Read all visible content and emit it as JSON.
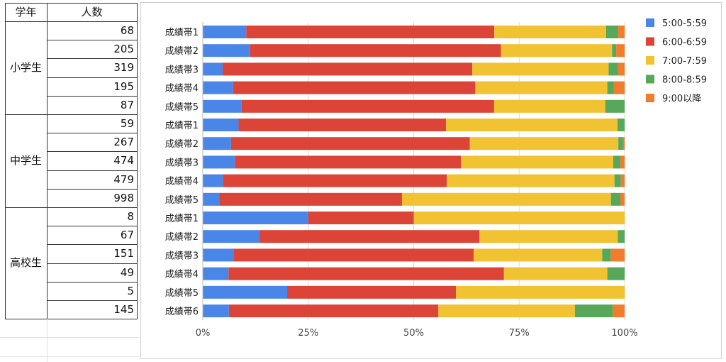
{
  "sheet": {
    "headers": [
      "学年",
      "人数"
    ],
    "groups": [
      {
        "grade": "小学生",
        "counts": [
          "68",
          "205",
          "319",
          "195",
          "87"
        ]
      },
      {
        "grade": "中学生",
        "counts": [
          "59",
          "267",
          "474",
          "479",
          "998"
        ]
      },
      {
        "grade": "高校生",
        "counts": [
          "8",
          "67",
          "151",
          "49",
          "5",
          "145"
        ]
      }
    ]
  },
  "chart_data": {
    "type": "bar",
    "orientation": "horizontal",
    "stacked": "percent",
    "categories": [
      "成績帯1",
      "成績帯2",
      "成績帯3",
      "成績帯4",
      "成績帯5",
      "成績帯1",
      "成績帯2",
      "成績帯3",
      "成績帯4",
      "成績帯5",
      "成績帯1",
      "成績帯2",
      "成績帯3",
      "成績帯4",
      "成績帯5",
      "成績帯6"
    ],
    "series": [
      {
        "name": "5:00-5:59",
        "color": "#4a86e8",
        "values": [
          10.3,
          11.2,
          4.7,
          7.2,
          9.2,
          8.5,
          6.7,
          7.6,
          4.8,
          3.9,
          25,
          13.4,
          7.3,
          6.1,
          20,
          6.2
        ]
      },
      {
        "name": "6:00-6:59",
        "color": "#db4437",
        "values": [
          58.8,
          59.5,
          59.2,
          57.4,
          60.0,
          49.2,
          56.6,
          53.6,
          53.0,
          42.8,
          25,
          52.2,
          56.9,
          65.3,
          40,
          49.7
        ]
      },
      {
        "name": "7:00-7:59",
        "color": "#f1c232",
        "values": [
          26.5,
          26.3,
          32.3,
          31.3,
          26.4,
          40.7,
          35.2,
          36.1,
          39.7,
          49.0,
          50,
          32.8,
          30.5,
          24.5,
          40,
          32.4
        ]
      },
      {
        "name": "8:00-8:59",
        "color": "#57a85a",
        "values": [
          2.9,
          1.0,
          2.2,
          1.5,
          4.6,
          1.7,
          1.1,
          1.7,
          1.5,
          2.2,
          0,
          1.6,
          2.0,
          4.1,
          0,
          9.0
        ]
      },
      {
        "name": "9:00以降",
        "color": "#f07c2c",
        "values": [
          1.5,
          2.0,
          1.6,
          2.6,
          0,
          0,
          0.4,
          1.0,
          0.9,
          1.0,
          0,
          0,
          3.3,
          0,
          0,
          2.8
        ]
      }
    ],
    "xlim": [
      0,
      100
    ],
    "x_ticks": [
      "0%",
      "25%",
      "50%",
      "75%",
      "100%"
    ],
    "grid": true,
    "legend": "right"
  }
}
